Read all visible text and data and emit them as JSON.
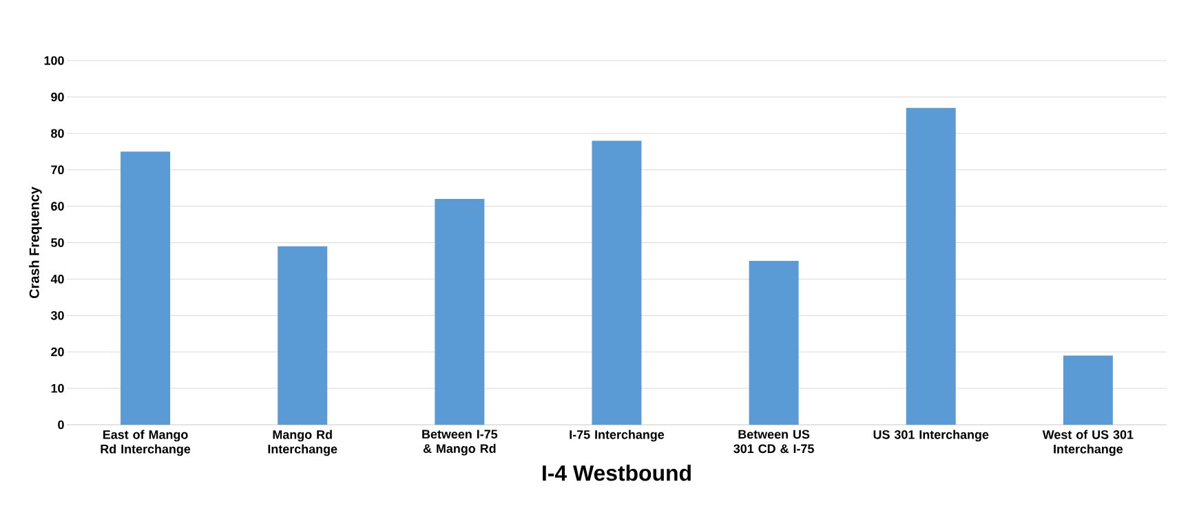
{
  "chart_data": {
    "type": "bar",
    "xlabel": "I-4 Westbound",
    "ylabel": "Crash Frequency",
    "categories": [
      "East of Mango Rd Interchange",
      "Mango Rd Interchange",
      "Between I-75 & Mango Rd",
      "I-75 Interchange",
      "Between US 301 CD & I-75",
      "US 301 Interchange",
      "West of US 301 Interchange"
    ],
    "values": [
      75,
      49,
      62,
      78,
      45,
      87,
      19
    ],
    "color": "#5b9bd5",
    "ylim": [
      0,
      100
    ],
    "yticks": [
      0,
      10,
      20,
      30,
      40,
      50,
      60,
      70,
      80,
      90,
      100
    ],
    "grid": "y"
  }
}
